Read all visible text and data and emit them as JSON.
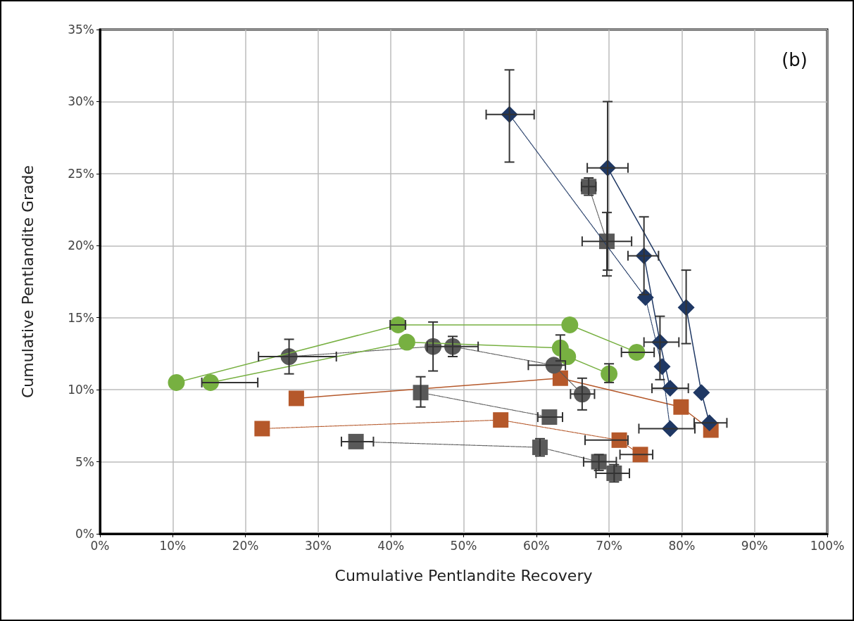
{
  "chart_data": {
    "type": "line",
    "xlabel": "Cumulative Pentlandite Recovery",
    "ylabel": "Cumulative Pentlandite Grade",
    "annotations": [
      "(b)"
    ],
    "xlim": [
      0,
      100
    ],
    "xticks": [
      {
        "value": 0,
        "label": "0%"
      },
      {
        "value": 10,
        "label": "10%"
      },
      {
        "value": 20,
        "label": "20%"
      },
      {
        "value": 30,
        "label": "30%"
      },
      {
        "value": 40,
        "label": "40%"
      },
      {
        "value": 50,
        "label": "50%"
      },
      {
        "value": 60,
        "label": "60%"
      },
      {
        "value": 70,
        "label": "70%"
      },
      {
        "value": 80,
        "label": "80%"
      },
      {
        "value": 90,
        "label": "90%"
      },
      {
        "value": 100,
        "label": "100%"
      }
    ],
    "ylim": [
      0,
      35
    ],
    "yticks": [
      {
        "value": 0,
        "label": "0%"
      },
      {
        "value": 5,
        "label": "5%"
      },
      {
        "value": 10,
        "label": "10%"
      },
      {
        "value": 15,
        "label": "15%"
      },
      {
        "value": 20,
        "label": "20%"
      },
      {
        "value": 25,
        "label": "25%"
      },
      {
        "value": 30,
        "label": "30%"
      },
      {
        "value": 35,
        "label": "35%"
      }
    ],
    "grid": true,
    "series": [
      {
        "color": "#1f3864",
        "marker": "diamond",
        "line_style": "solid",
        "x": [
          69.8,
          80.6,
          82.7,
          83.8
        ],
        "values": [
          25.4,
          15.7,
          9.8,
          7.7
        ],
        "errors": [
          [
            18.3,
            30.0
          ],
          [
            13.2,
            18.3
          ],
          null,
          null
        ],
        "xerrors": [
          [
            67.0,
            72.6
          ],
          null,
          null,
          [
            81.7,
            86.2
          ]
        ]
      },
      {
        "color": "#1f3864",
        "marker": "diamond",
        "line_style": "solid",
        "x": [
          74.8,
          77.0,
          78.4
        ],
        "values": [
          19.3,
          13.3,
          10.1
        ],
        "errors": [
          [
            16.6,
            22.0
          ],
          [
            10.7,
            15.1
          ],
          null
        ],
        "xerrors": [
          [
            72.6,
            76.8
          ],
          [
            74.8,
            79.6
          ],
          [
            75.9,
            80.9
          ]
        ]
      },
      {
        "color": "#1f3864",
        "marker": "diamond",
        "line_style": "dotted",
        "x": [
          56.3,
          75.0,
          77.3,
          78.4
        ],
        "values": [
          29.1,
          16.4,
          11.6,
          7.3
        ],
        "errors": [
          [
            25.8,
            32.2
          ],
          null,
          null,
          null
        ],
        "xerrors": [
          [
            53.1,
            59.7
          ],
          null,
          null,
          [
            74.1,
            81.8
          ]
        ]
      },
      {
        "color": "#595959",
        "marker": "square",
        "line_style": "dotted",
        "x": [
          67.2,
          69.7
        ],
        "values": [
          24.1,
          20.3
        ],
        "errors": [
          [
            23.5,
            24.7
          ],
          [
            17.9,
            22.3
          ]
        ],
        "xerrors": [
          [
            66.2,
            68.2
          ],
          [
            66.3,
            73.1
          ]
        ]
      },
      {
        "color": "#77b041",
        "marker": "circle",
        "line_style": "solid",
        "x": [
          10.5,
          41.0,
          64.6,
          73.8
        ],
        "values": [
          10.5,
          14.5,
          14.5,
          12.6
        ],
        "xerrors": [
          null,
          [
            39.9,
            42.0
          ],
          null,
          [
            71.7,
            76.2
          ]
        ]
      },
      {
        "color": "#77b041",
        "marker": "circle",
        "line_style": "solid",
        "x": [
          15.2,
          42.2,
          63.3,
          64.3,
          70.0
        ],
        "values": [
          10.5,
          13.3,
          12.9,
          12.3,
          11.1
        ],
        "errors": [
          null,
          null,
          [
            12.0,
            13.8
          ],
          null,
          [
            10.5,
            11.8
          ]
        ],
        "xerrors": [
          [
            14.0,
            21.7
          ],
          null,
          null,
          null,
          null
        ]
      },
      {
        "color": "#595959",
        "marker": "circle",
        "line_style": "dotted",
        "x": [
          26.0,
          45.8,
          48.5,
          62.4,
          66.3
        ],
        "values": [
          12.3,
          13.0,
          13.0,
          11.7,
          9.7
        ],
        "errors": [
          [
            11.1,
            13.5
          ],
          [
            11.3,
            14.7
          ],
          [
            12.3,
            13.7
          ],
          null,
          [
            8.6,
            10.8
          ]
        ],
        "xerrors": [
          [
            21.8,
            32.5
          ],
          null,
          [
            45.0,
            52.0
          ],
          [
            58.9,
            64.0
          ],
          [
            64.7,
            68.0
          ]
        ]
      },
      {
        "color": "#595959",
        "marker": "square",
        "line_style": "dotted",
        "x": [
          44.1,
          61.8
        ],
        "values": [
          9.8,
          8.1
        ],
        "errors": [
          [
            8.8,
            10.9
          ],
          null
        ],
        "xerrors": [
          null,
          [
            60.2,
            63.6
          ]
        ]
      },
      {
        "color": "#b5582a",
        "marker": "square",
        "line_style": "solid",
        "x": [
          27.0,
          63.3,
          79.9,
          84.0
        ],
        "values": [
          9.4,
          10.8,
          8.8,
          7.2
        ]
      },
      {
        "color": "#b5582a",
        "marker": "square",
        "line_style": "dotted",
        "x": [
          22.3,
          55.1,
          71.4,
          74.3
        ],
        "values": [
          7.3,
          7.9,
          6.5,
          5.5
        ],
        "xerrors": [
          null,
          null,
          [
            66.7,
            72.6
          ],
          [
            71.5,
            76.0
          ]
        ]
      },
      {
        "color": "#595959",
        "marker": "square",
        "line_style": "dotted",
        "x": [
          35.2,
          60.5,
          68.6,
          70.7
        ],
        "values": [
          6.4,
          6.0,
          5.0,
          4.2
        ],
        "errors": [
          null,
          [
            5.4,
            6.6
          ],
          [
            4.4,
            5.5
          ],
          [
            3.6,
            4.8
          ]
        ],
        "xerrors": [
          [
            33.2,
            37.6
          ],
          null,
          [
            66.5,
            71.0
          ],
          [
            68.2,
            72.8
          ]
        ]
      }
    ]
  }
}
